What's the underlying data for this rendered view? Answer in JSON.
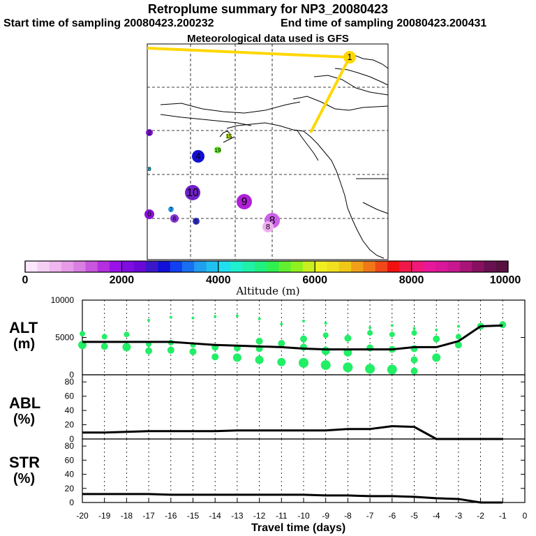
{
  "header": {
    "title": "Retroplume summary for NP3_20080423",
    "start_label": "Start time of sampling 20080423.200232",
    "end_label": "End time of sampling 20080423.200431",
    "met_label": "Meteorological data used is GFS"
  },
  "map": {
    "markers": [
      {
        "label": "1",
        "color": "#ffd700"
      },
      {
        "label": "2",
        "color": "#7b10d0"
      },
      {
        "label": "4",
        "color": "#1010d0"
      },
      {
        "label": "19",
        "color": "#66ee22"
      },
      {
        "label": "15",
        "color": "#a8d820"
      },
      {
        "label": "8",
        "color": "#40d8e8"
      },
      {
        "label": "10",
        "color": "#7020c8"
      },
      {
        "label": "9",
        "color": "#b020d8"
      },
      {
        "label": "0",
        "color": "#8a10d8"
      },
      {
        "label": "7",
        "color": "#2a9af0"
      },
      {
        "label": "6",
        "color": "#8030d0"
      },
      {
        "label": "5",
        "color": "#3030c0"
      },
      {
        "label": "8",
        "color": "#cc60e8"
      },
      {
        "label": "8",
        "color": "#f0b0f0"
      }
    ]
  },
  "colorbar": {
    "tick_labels": [
      "0",
      "2000",
      "4000",
      "6000",
      "8000",
      "10000"
    ],
    "axis_label": "Altitude (m)",
    "colors": [
      "#fbe6fb",
      "#f5d0f5",
      "#f0b6f0",
      "#e69be9",
      "#d97fe3",
      "#c956de",
      "#b52ee0",
      "#9a10e8",
      "#7f0ce0",
      "#6a08d8",
      "#3a18c8",
      "#1010d8",
      "#1040f0",
      "#1870f0",
      "#209ef0",
      "#20c0f0",
      "#20e0f0",
      "#20f0d0",
      "#20f0a8",
      "#20f080",
      "#30f050",
      "#60f030",
      "#90f020",
      "#c8f020",
      "#f0f020",
      "#f0e020",
      "#f0c818",
      "#f0a018",
      "#f07818",
      "#f04818",
      "#f01010",
      "#f01848",
      "#f01878",
      "#e8189a",
      "#d81898",
      "#c81890",
      "#a81478",
      "#881060",
      "#681050",
      "#581040"
    ]
  },
  "chart_data": [
    {
      "type": "line",
      "panel": "ALT",
      "ylabel_line1": "ALT",
      "ylabel_line2": "(m)",
      "ylim": [
        0,
        10000
      ],
      "ytick_labels": [
        "10000",
        "5000",
        "0"
      ],
      "ytick_values": [
        10000,
        5000,
        0
      ],
      "x": [
        -20,
        -19,
        -18,
        -17,
        -16,
        -15,
        -14,
        -13,
        -12,
        -11,
        -10,
        -9,
        -8,
        -7,
        -6,
        -5,
        -4,
        -3,
        -2,
        -1
      ],
      "values": [
        4400,
        4400,
        4400,
        4400,
        4400,
        4200,
        4000,
        3900,
        3800,
        3700,
        3500,
        3400,
        3400,
        3400,
        3400,
        3700,
        3700,
        4500,
        6500,
        6600
      ],
      "scatter_color": "#22ee66",
      "scatter": [
        [
          -20,
          5500,
          4
        ],
        [
          -20,
          4000,
          6
        ],
        [
          -19,
          5100,
          4
        ],
        [
          -19,
          3800,
          5
        ],
        [
          -18,
          5400,
          4
        ],
        [
          -18,
          3700,
          6
        ],
        [
          -17,
          7300,
          2
        ],
        [
          -17,
          4100,
          4
        ],
        [
          -17,
          3200,
          5
        ],
        [
          -16,
          7700,
          2
        ],
        [
          -16,
          4300,
          4
        ],
        [
          -16,
          3300,
          5
        ],
        [
          -15,
          7600,
          2
        ],
        [
          -15,
          4000,
          4
        ],
        [
          -15,
          3100,
          5
        ],
        [
          -14,
          7800,
          2
        ],
        [
          -14,
          3700,
          5
        ],
        [
          -14,
          2400,
          5
        ],
        [
          -13,
          7900,
          2
        ],
        [
          -13,
          3600,
          5
        ],
        [
          -13,
          2300,
          6
        ],
        [
          -12,
          7500,
          2
        ],
        [
          -12,
          4500,
          5
        ],
        [
          -12,
          3500,
          5
        ],
        [
          -12,
          2000,
          6
        ],
        [
          -11,
          6800,
          2
        ],
        [
          -11,
          4200,
          5
        ],
        [
          -11,
          1700,
          6
        ],
        [
          -10,
          7200,
          2
        ],
        [
          -10,
          4800,
          5
        ],
        [
          -10,
          3700,
          5
        ],
        [
          -10,
          1600,
          7
        ],
        [
          -9,
          6900,
          2
        ],
        [
          -9,
          5300,
          4
        ],
        [
          -9,
          3200,
          6
        ],
        [
          -9,
          1300,
          7
        ],
        [
          -8,
          4900,
          5
        ],
        [
          -8,
          3000,
          6
        ],
        [
          -8,
          1000,
          7
        ],
        [
          -7,
          6300,
          2
        ],
        [
          -7,
          5600,
          4
        ],
        [
          -7,
          3600,
          5
        ],
        [
          -7,
          800,
          7
        ],
        [
          -6,
          6600,
          2
        ],
        [
          -6,
          5400,
          4
        ],
        [
          -6,
          3400,
          5
        ],
        [
          -6,
          700,
          7
        ],
        [
          -5,
          6200,
          2
        ],
        [
          -5,
          5600,
          4
        ],
        [
          -5,
          3500,
          5
        ],
        [
          -5,
          2000,
          5
        ],
        [
          -5,
          500,
          5
        ],
        [
          -4,
          6000,
          2
        ],
        [
          -4,
          4800,
          5
        ],
        [
          -4,
          2300,
          6
        ],
        [
          -3,
          6500,
          2
        ],
        [
          -3,
          5100,
          4
        ],
        [
          -3,
          4000,
          5
        ],
        [
          -2,
          6500,
          5
        ],
        [
          -1,
          6700,
          5
        ]
      ]
    },
    {
      "type": "line",
      "panel": "ABL",
      "ylabel_line1": "ABL",
      "ylabel_line2": "(%)",
      "ylim": [
        0,
        90
      ],
      "ytick_labels": [
        "80",
        "60",
        "40",
        "20",
        "0"
      ],
      "ytick_values": [
        80,
        60,
        40,
        20,
        0
      ],
      "x": [
        -20,
        -19,
        -18,
        -17,
        -16,
        -15,
        -14,
        -13,
        -12,
        -11,
        -10,
        -9,
        -8,
        -7,
        -6,
        -5,
        -4,
        -3,
        -2,
        -1
      ],
      "values": [
        9,
        9,
        10,
        11,
        11,
        11,
        11,
        12,
        12,
        12,
        12,
        12,
        14,
        14,
        18,
        17,
        0,
        0,
        0,
        0
      ]
    },
    {
      "type": "line",
      "panel": "STR",
      "ylabel_line1": "STR",
      "ylabel_line2": "(%)",
      "ylim": [
        0,
        90
      ],
      "ytick_labels": [
        "80",
        "60",
        "40",
        "20",
        "0"
      ],
      "ytick_values": [
        80,
        60,
        40,
        20,
        0
      ],
      "x": [
        -20,
        -19,
        -18,
        -17,
        -16,
        -15,
        -14,
        -13,
        -12,
        -11,
        -10,
        -9,
        -8,
        -7,
        -6,
        -5,
        -4,
        -3,
        -2,
        -1
      ],
      "values": [
        12,
        12,
        12,
        12,
        11,
        11,
        11,
        11,
        11,
        11,
        11,
        10,
        10,
        9,
        9,
        8,
        6,
        5,
        0,
        0
      ],
      "xtick_labels": [
        "-20",
        "-19",
        "-18",
        "-17",
        "-16",
        "-15",
        "-14",
        "-13",
        "-12",
        "-11",
        "-10",
        "-9",
        "-8",
        "-7",
        "-6",
        "-5",
        "-4",
        "-3",
        "-2",
        "-1",
        "0"
      ],
      "xlabel": "Travel time (days)"
    }
  ]
}
